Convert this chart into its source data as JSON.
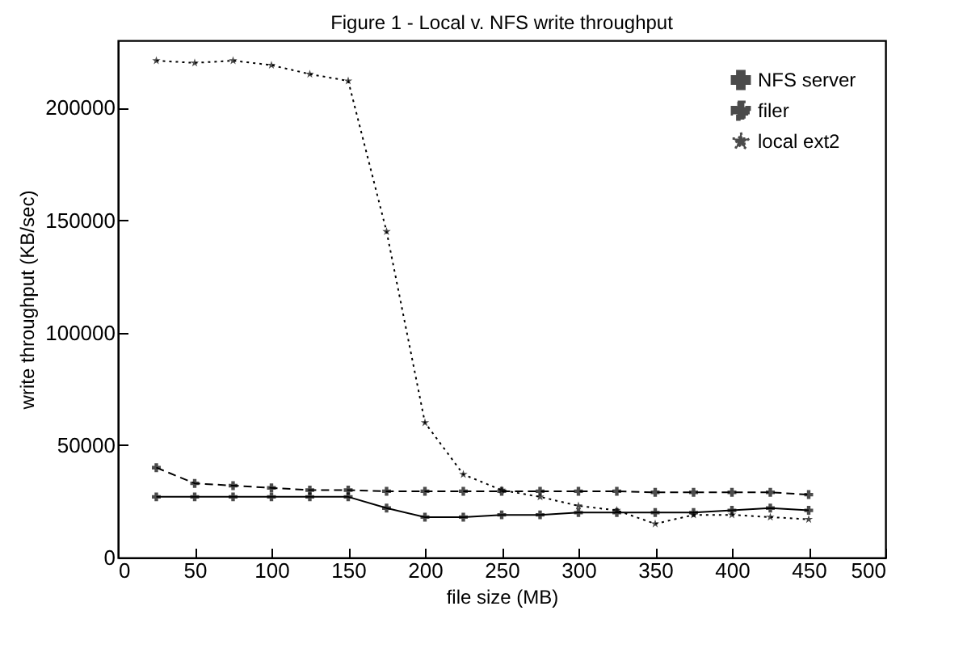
{
  "chart_data": {
    "type": "line",
    "title": "Figure 1 - Local v. NFS write throughput",
    "xlabel": "file size (MB)",
    "ylabel": "write throughput (KB/sec)",
    "x": [
      25,
      50,
      75,
      100,
      125,
      150,
      175,
      200,
      225,
      250,
      275,
      300,
      325,
      350,
      375,
      400,
      425,
      450
    ],
    "series": [
      {
        "name": "NFS server",
        "color": "#000000",
        "line_style": "solid",
        "marker": "cross",
        "values": [
          27000,
          27000,
          27000,
          27000,
          27000,
          27000,
          22000,
          18000,
          18000,
          19000,
          19000,
          20000,
          20000,
          20000,
          20000,
          21000,
          22000,
          21000
        ]
      },
      {
        "name": "filer",
        "color": "#000000",
        "line_style": "dashed",
        "marker": "cross",
        "values": [
          40000,
          33000,
          32000,
          31000,
          30000,
          30000,
          29500,
          29500,
          29500,
          29500,
          29500,
          29500,
          29500,
          29000,
          29000,
          29000,
          29000,
          28000
        ]
      },
      {
        "name": "local ext2",
        "color": "#000000",
        "line_style": "dotted",
        "marker": "star",
        "values": [
          221000,
          220000,
          221000,
          219000,
          215000,
          212000,
          145000,
          60000,
          37000,
          30000,
          27000,
          23000,
          21000,
          15000,
          19000,
          19000,
          18000,
          17000
        ]
      }
    ],
    "xlim": [
      0,
      500
    ],
    "xticks": [
      0,
      50,
      100,
      150,
      200,
      250,
      300,
      350,
      400,
      450,
      500
    ],
    "ylim": [
      0,
      230000
    ],
    "yticks": [
      0,
      50000,
      100000,
      150000,
      200000
    ],
    "legend": "top right",
    "grid": false
  }
}
